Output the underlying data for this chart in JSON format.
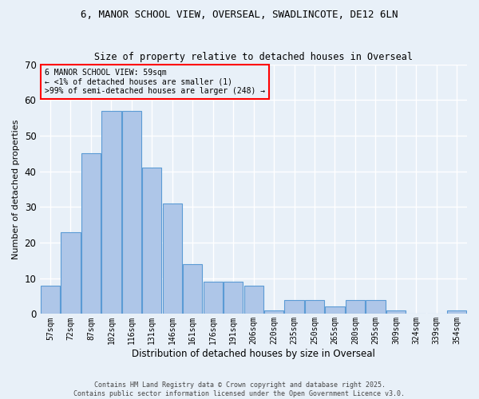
{
  "title1": "6, MANOR SCHOOL VIEW, OVERSEAL, SWADLINCOTE, DE12 6LN",
  "title2": "Size of property relative to detached houses in Overseal",
  "xlabel": "Distribution of detached houses by size in Overseal",
  "ylabel": "Number of detached properties",
  "categories": [
    "57sqm",
    "72sqm",
    "87sqm",
    "102sqm",
    "116sqm",
    "131sqm",
    "146sqm",
    "161sqm",
    "176sqm",
    "191sqm",
    "206sqm",
    "220sqm",
    "235sqm",
    "250sqm",
    "265sqm",
    "280sqm",
    "295sqm",
    "309sqm",
    "324sqm",
    "339sqm",
    "354sqm"
  ],
  "values": [
    8,
    23,
    45,
    57,
    57,
    41,
    31,
    14,
    9,
    9,
    8,
    1,
    4,
    4,
    2,
    4,
    4,
    1,
    0,
    0,
    1
  ],
  "bar_color": "#aec6e8",
  "bar_edge_color": "#5b9bd5",
  "ylim": [
    0,
    70
  ],
  "yticks": [
    0,
    10,
    20,
    30,
    40,
    50,
    60,
    70
  ],
  "annotation_box_text": "6 MANOR SCHOOL VIEW: 59sqm\n← <1% of detached houses are smaller (1)\n>99% of semi-detached houses are larger (248) →",
  "bg_color": "#e8f0f8",
  "grid_color": "#ffffff",
  "footer_text": "Contains HM Land Registry data © Crown copyright and database right 2025.\nContains public sector information licensed under the Open Government Licence v3.0."
}
